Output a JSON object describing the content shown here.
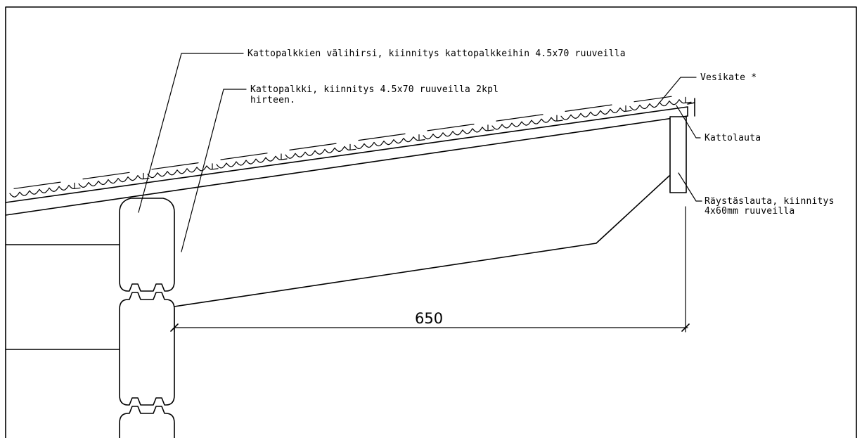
{
  "labels": {
    "valihirsi": "Kattopalkkien välihirsi, kiinnitys kattopalkkeihin 4.5x70 ruuveilla",
    "kattopalkki_line1": "Kattopalkki, kiinnitys 4.5x70 ruuveilla 2kpl",
    "kattopalkki_line2": "hirteen.",
    "vesikate": "Vesikate *",
    "kattolauta": "Kattolauta",
    "raystaslauta_line1": "Räystäslauta, kiinnitys",
    "raystaslauta_line2": "4x60mm ruuveilla"
  },
  "dimension": {
    "value": "650"
  }
}
